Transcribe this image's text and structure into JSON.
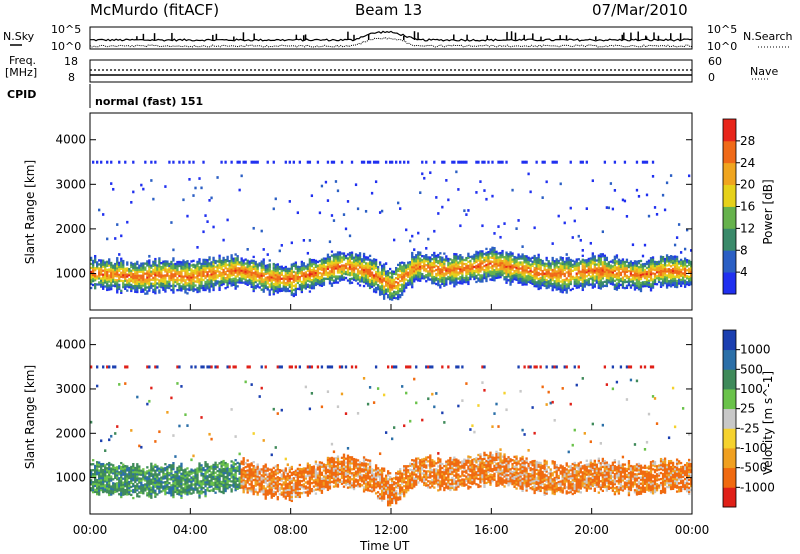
{
  "header": {
    "station": "McMurdo (fitACF)",
    "beam": "Beam 13",
    "date": "07/Mar/2010"
  },
  "top_panels": {
    "nsky_label": "N.Sky",
    "nsearch_label": "N.Search",
    "noise_ticks_left": [
      "10^5",
      "10^0"
    ],
    "noise_ticks_right": [
      "10^5",
      "10^0"
    ],
    "freq_label": "Freq.",
    "freq_unit": "[MHz]",
    "freq_ticks": [
      "18",
      "8"
    ],
    "nave_label": "Nave",
    "nave_ticks": [
      "60",
      "0"
    ],
    "cpid_label": "CPID",
    "cpid_value": "normal (fast) 151"
  },
  "colors": {
    "power_scale": [
      "#2030f0",
      "#2b5fc4",
      "#3a8a6a",
      "#66b24c",
      "#e6d11a",
      "#f0a51f",
      "#f06a18",
      "#e8251a"
    ],
    "velocity_scale": [
      "#1b3fb0",
      "#2b6fa8",
      "#3f8a5a",
      "#6ac24a",
      "#c8c8c8",
      "#f5d22e",
      "#f0a020",
      "#f06a10",
      "#e02018"
    ]
  },
  "chart_data": [
    {
      "type": "heatmap",
      "title": "",
      "xlabel": "Time UT",
      "ylabel": "Slant Range [km]",
      "x_ticks": [
        "00:00",
        "04:00",
        "08:00",
        "12:00",
        "16:00",
        "20:00",
        "00:00"
      ],
      "y_ticks": [
        "1000",
        "2000",
        "3000",
        "4000"
      ],
      "xlim": [
        "00:00",
        "24:00"
      ],
      "ylim": [
        180,
        4600
      ],
      "colorbar_label": "Power [dB]",
      "colorbar_ticks": [
        "4",
        "8",
        "12",
        "16",
        "20",
        "24",
        "28"
      ],
      "colorbar_range": [
        0,
        30
      ],
      "main_echo_band": {
        "hours": [
          0,
          1,
          2,
          3,
          4,
          5,
          6,
          7,
          8,
          9,
          10,
          11,
          12,
          13,
          14,
          15,
          16,
          17,
          18,
          19,
          20,
          21,
          22,
          23,
          24
        ],
        "center_km": [
          1000,
          950,
          900,
          950,
          900,
          1000,
          1050,
          900,
          850,
          1000,
          1150,
          1050,
          700,
          1150,
          1050,
          1100,
          1200,
          1100,
          1000,
          950,
          1050,
          1000,
          950,
          1050,
          1000
        ]
      }
    },
    {
      "type": "heatmap",
      "title": "",
      "xlabel": "Time UT",
      "ylabel": "Slant Range [km]",
      "x_ticks": [
        "00:00",
        "04:00",
        "08:00",
        "12:00",
        "16:00",
        "20:00",
        "00:00"
      ],
      "y_ticks": [
        "1000",
        "2000",
        "3000",
        "4000"
      ],
      "xlim": [
        "00:00",
        "24:00"
      ],
      "ylim": [
        180,
        4600
      ],
      "colorbar_label": "Velocity [m s^-1]",
      "colorbar_ticks": [
        "1000",
        "500",
        "100",
        "25",
        "-25",
        "-100",
        "-500",
        "-1000"
      ]
    }
  ]
}
